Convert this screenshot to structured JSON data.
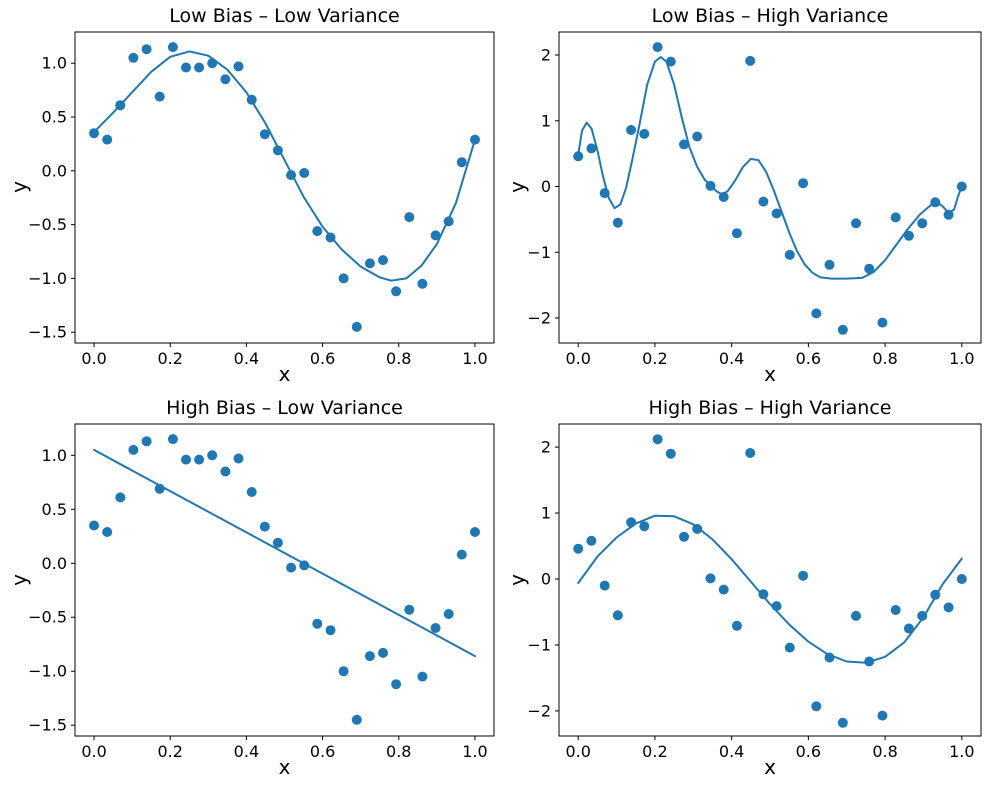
{
  "figure": {
    "background": "#ffffff",
    "text_color": "#000000",
    "accent_color": "#1f77b4"
  },
  "chart_data": [
    {
      "type": "scatter",
      "title": "Low Bias – Low Variance",
      "xlabel": "x",
      "ylabel": "y",
      "xlim": [
        -0.05,
        1.05
      ],
      "ylim": [
        -1.6,
        1.29
      ],
      "xticks": [
        0.0,
        0.2,
        0.4,
        0.6,
        0.8,
        1.0
      ],
      "xtick_labels": [
        "0.0",
        "0.2",
        "0.4",
        "0.6",
        "0.8",
        "1.0"
      ],
      "yticks": [
        1.0,
        0.5,
        0.0,
        -0.5,
        -1.0,
        -1.5
      ],
      "ytick_labels": [
        "1.0",
        "0.5",
        "0.0",
        "−0.5",
        "−1.0",
        "−1.5"
      ],
      "grid": false,
      "legend": null,
      "marker_color": "#1f77b4",
      "line_color": "#1f77b4",
      "scatter_x": [
        0.0,
        0.0345,
        0.069,
        0.1034,
        0.1379,
        0.1724,
        0.2069,
        0.2414,
        0.2759,
        0.3103,
        0.3448,
        0.3793,
        0.4138,
        0.4483,
        0.4828,
        0.5172,
        0.5517,
        0.5862,
        0.6207,
        0.6552,
        0.6897,
        0.7241,
        0.7586,
        0.7931,
        0.8276,
        0.8621,
        0.8966,
        0.931,
        0.9655,
        1.0
      ],
      "scatter_y": [
        0.35,
        0.29,
        0.61,
        1.05,
        1.13,
        0.69,
        1.15,
        0.96,
        0.96,
        1.0,
        0.85,
        0.97,
        0.66,
        0.34,
        0.19,
        -0.04,
        -0.02,
        -0.56,
        -0.62,
        -1.0,
        -1.45,
        -0.86,
        -0.83,
        -1.12,
        -0.43,
        -1.05,
        -0.6,
        -0.47,
        0.08,
        0.29
      ],
      "fit_curve": [
        [
          0.0,
          0.36
        ],
        [
          0.05,
          0.54
        ],
        [
          0.1,
          0.73
        ],
        [
          0.15,
          0.92
        ],
        [
          0.2,
          1.06
        ],
        [
          0.25,
          1.11
        ],
        [
          0.3,
          1.07
        ],
        [
          0.35,
          0.94
        ],
        [
          0.4,
          0.73
        ],
        [
          0.45,
          0.44
        ],
        [
          0.5,
          0.1
        ],
        [
          0.55,
          -0.24
        ],
        [
          0.6,
          -0.52
        ],
        [
          0.65,
          -0.73
        ],
        [
          0.7,
          -0.89
        ],
        [
          0.75,
          -0.99
        ],
        [
          0.78,
          -1.02
        ],
        [
          0.82,
          -1.0
        ],
        [
          0.86,
          -0.88
        ],
        [
          0.9,
          -0.68
        ],
        [
          0.95,
          -0.3
        ],
        [
          1.0,
          0.29
        ]
      ]
    },
    {
      "type": "scatter",
      "title": "Low Bias – High Variance",
      "xlabel": "x",
      "ylabel": "y",
      "xlim": [
        -0.05,
        1.05
      ],
      "ylim": [
        -2.38,
        2.35
      ],
      "xticks": [
        0.0,
        0.2,
        0.4,
        0.6,
        0.8,
        1.0
      ],
      "xtick_labels": [
        "0.0",
        "0.2",
        "0.4",
        "0.6",
        "0.8",
        "1.0"
      ],
      "yticks": [
        2,
        1,
        0,
        -1,
        -2
      ],
      "ytick_labels": [
        "2",
        "1",
        "0",
        "−1",
        "−2"
      ],
      "grid": false,
      "legend": null,
      "marker_color": "#1f77b4",
      "line_color": "#1f77b4",
      "scatter_x": [
        0.0,
        0.0345,
        0.069,
        0.1034,
        0.1379,
        0.1724,
        0.2069,
        0.2414,
        0.2759,
        0.3103,
        0.3448,
        0.3793,
        0.4138,
        0.4483,
        0.4828,
        0.5172,
        0.5517,
        0.5862,
        0.6207,
        0.6552,
        0.6897,
        0.7241,
        0.7586,
        0.7931,
        0.8276,
        0.8621,
        0.8966,
        0.931,
        0.9655,
        1.0
      ],
      "scatter_y": [
        0.46,
        0.58,
        -0.1,
        -0.55,
        0.86,
        0.8,
        2.12,
        1.9,
        0.64,
        0.76,
        0.01,
        -0.16,
        -0.71,
        1.91,
        -0.23,
        -0.41,
        -1.04,
        0.05,
        -1.93,
        -1.19,
        -2.18,
        -0.56,
        -1.25,
        -2.07,
        -0.47,
        -0.75,
        -0.56,
        -0.24,
        -0.43,
        0.0
      ],
      "fit_curve": [
        [
          0.0,
          0.48
        ],
        [
          0.01,
          0.85
        ],
        [
          0.022,
          0.97
        ],
        [
          0.035,
          0.88
        ],
        [
          0.05,
          0.55
        ],
        [
          0.065,
          0.15
        ],
        [
          0.08,
          -0.18
        ],
        [
          0.095,
          -0.33
        ],
        [
          0.11,
          -0.27
        ],
        [
          0.125,
          -0.02
        ],
        [
          0.14,
          0.38
        ],
        [
          0.16,
          0.95
        ],
        [
          0.18,
          1.55
        ],
        [
          0.2,
          1.9
        ],
        [
          0.215,
          1.97
        ],
        [
          0.23,
          1.9
        ],
        [
          0.25,
          1.55
        ],
        [
          0.27,
          1.05
        ],
        [
          0.29,
          0.6
        ],
        [
          0.31,
          0.3
        ],
        [
          0.33,
          0.1
        ],
        [
          0.345,
          0.02
        ],
        [
          0.36,
          -0.07
        ],
        [
          0.375,
          -0.12
        ],
        [
          0.39,
          -0.07
        ],
        [
          0.41,
          0.1
        ],
        [
          0.43,
          0.3
        ],
        [
          0.45,
          0.42
        ],
        [
          0.47,
          0.4
        ],
        [
          0.49,
          0.22
        ],
        [
          0.51,
          -0.06
        ],
        [
          0.53,
          -0.38
        ],
        [
          0.55,
          -0.7
        ],
        [
          0.57,
          -0.98
        ],
        [
          0.59,
          -1.18
        ],
        [
          0.61,
          -1.31
        ],
        [
          0.63,
          -1.38
        ],
        [
          0.66,
          -1.4
        ],
        [
          0.7,
          -1.4
        ],
        [
          0.74,
          -1.39
        ],
        [
          0.77,
          -1.3
        ],
        [
          0.8,
          -1.12
        ],
        [
          0.83,
          -0.88
        ],
        [
          0.86,
          -0.64
        ],
        [
          0.89,
          -0.43
        ],
        [
          0.92,
          -0.28
        ],
        [
          0.935,
          -0.24
        ],
        [
          0.95,
          -0.3
        ],
        [
          0.965,
          -0.4
        ],
        [
          0.98,
          -0.35
        ],
        [
          0.99,
          -0.15
        ],
        [
          1.0,
          0.0
        ]
      ]
    },
    {
      "type": "scatter",
      "title": "High Bias – Low Variance",
      "xlabel": "x",
      "ylabel": "y",
      "xlim": [
        -0.05,
        1.05
      ],
      "ylim": [
        -1.6,
        1.29
      ],
      "xticks": [
        0.0,
        0.2,
        0.4,
        0.6,
        0.8,
        1.0
      ],
      "xtick_labels": [
        "0.0",
        "0.2",
        "0.4",
        "0.6",
        "0.8",
        "1.0"
      ],
      "yticks": [
        1.0,
        0.5,
        0.0,
        -0.5,
        -1.0,
        -1.5
      ],
      "ytick_labels": [
        "1.0",
        "0.5",
        "0.0",
        "−0.5",
        "−1.0",
        "−1.5"
      ],
      "grid": false,
      "legend": null,
      "marker_color": "#1f77b4",
      "line_color": "#1f77b4",
      "scatter_x": [
        0.0,
        0.0345,
        0.069,
        0.1034,
        0.1379,
        0.1724,
        0.2069,
        0.2414,
        0.2759,
        0.3103,
        0.3448,
        0.3793,
        0.4138,
        0.4483,
        0.4828,
        0.5172,
        0.5517,
        0.5862,
        0.6207,
        0.6552,
        0.6897,
        0.7241,
        0.7586,
        0.7931,
        0.8276,
        0.8621,
        0.8966,
        0.931,
        0.9655,
        1.0
      ],
      "scatter_y": [
        0.35,
        0.29,
        0.61,
        1.05,
        1.13,
        0.69,
        1.15,
        0.96,
        0.96,
        1.0,
        0.85,
        0.97,
        0.66,
        0.34,
        0.19,
        -0.04,
        -0.02,
        -0.56,
        -0.62,
        -1.0,
        -1.45,
        -0.86,
        -0.83,
        -1.12,
        -0.43,
        -1.05,
        -0.6,
        -0.47,
        0.08,
        0.29
      ],
      "fit_curve": [
        [
          0.0,
          1.05
        ],
        [
          1.0,
          -0.86
        ]
      ]
    },
    {
      "type": "scatter",
      "title": "High Bias – High Variance",
      "xlabel": "x",
      "ylabel": "y",
      "xlim": [
        -0.05,
        1.05
      ],
      "ylim": [
        -2.38,
        2.35
      ],
      "xticks": [
        0.0,
        0.2,
        0.4,
        0.6,
        0.8,
        1.0
      ],
      "xtick_labels": [
        "0.0",
        "0.2",
        "0.4",
        "0.6",
        "0.8",
        "1.0"
      ],
      "yticks": [
        2,
        1,
        0,
        -1,
        -2
      ],
      "ytick_labels": [
        "2",
        "1",
        "0",
        "−1",
        "−2"
      ],
      "grid": false,
      "legend": null,
      "marker_color": "#1f77b4",
      "line_color": "#1f77b4",
      "scatter_x": [
        0.0,
        0.0345,
        0.069,
        0.1034,
        0.1379,
        0.1724,
        0.2069,
        0.2414,
        0.2759,
        0.3103,
        0.3448,
        0.3793,
        0.4138,
        0.4483,
        0.4828,
        0.5172,
        0.5517,
        0.5862,
        0.6207,
        0.6552,
        0.6897,
        0.7241,
        0.7586,
        0.7931,
        0.8276,
        0.8621,
        0.8966,
        0.931,
        0.9655,
        1.0
      ],
      "scatter_y": [
        0.46,
        0.58,
        -0.1,
        -0.55,
        0.86,
        0.8,
        2.12,
        1.9,
        0.64,
        0.76,
        0.01,
        -0.16,
        -0.71,
        1.91,
        -0.23,
        -0.41,
        -1.04,
        0.05,
        -1.93,
        -1.19,
        -2.18,
        -0.56,
        -1.25,
        -2.07,
        -0.47,
        -0.75,
        -0.56,
        -0.24,
        -0.43,
        0.0
      ],
      "fit_curve": [
        [
          0.0,
          -0.06
        ],
        [
          0.05,
          0.34
        ],
        [
          0.1,
          0.63
        ],
        [
          0.15,
          0.84
        ],
        [
          0.2,
          0.96
        ],
        [
          0.25,
          0.95
        ],
        [
          0.3,
          0.83
        ],
        [
          0.35,
          0.6
        ],
        [
          0.4,
          0.3
        ],
        [
          0.45,
          -0.04
        ],
        [
          0.5,
          -0.38
        ],
        [
          0.55,
          -0.69
        ],
        [
          0.6,
          -0.95
        ],
        [
          0.65,
          -1.14
        ],
        [
          0.7,
          -1.25
        ],
        [
          0.75,
          -1.27
        ],
        [
          0.8,
          -1.18
        ],
        [
          0.85,
          -0.96
        ],
        [
          0.9,
          -0.58
        ],
        [
          0.95,
          -0.08
        ],
        [
          1.0,
          0.31
        ]
      ]
    }
  ]
}
